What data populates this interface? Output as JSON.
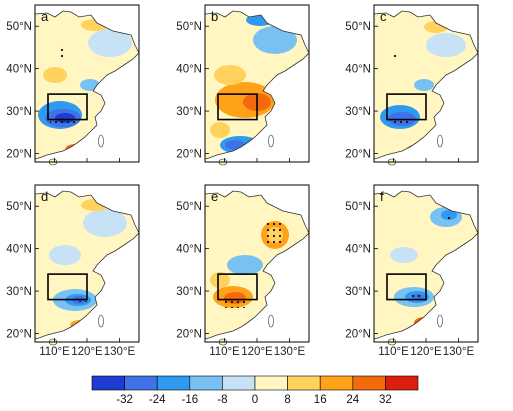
{
  "panels": [
    {
      "label": "a"
    },
    {
      "label": "b"
    },
    {
      "label": "c"
    },
    {
      "label": "d"
    },
    {
      "label": "e"
    },
    {
      "label": "f"
    }
  ],
  "lat_ticks": [
    "50°N",
    "40°N",
    "30°N",
    "20°N"
  ],
  "lon_ticks": [
    "110°E",
    "120°E",
    "130°E"
  ],
  "colorbar": {
    "tick_labels": [
      "-32",
      "-24",
      "-16",
      "-8",
      "0",
      "8",
      "16",
      "24",
      "32"
    ],
    "colors": [
      "#1e3cd2",
      "#3e72e6",
      "#2f9af0",
      "#77c1f3",
      "#c6e2f4",
      "#fff6c2",
      "#ffd25e",
      "#ffa21a",
      "#f26a0c",
      "#dc1e0c"
    ]
  },
  "region_box": {
    "lon": [
      108,
      120
    ],
    "lat": [
      28,
      34
    ]
  },
  "map_extent": {
    "lon": [
      104,
      136
    ],
    "lat": [
      18,
      55
    ]
  }
}
